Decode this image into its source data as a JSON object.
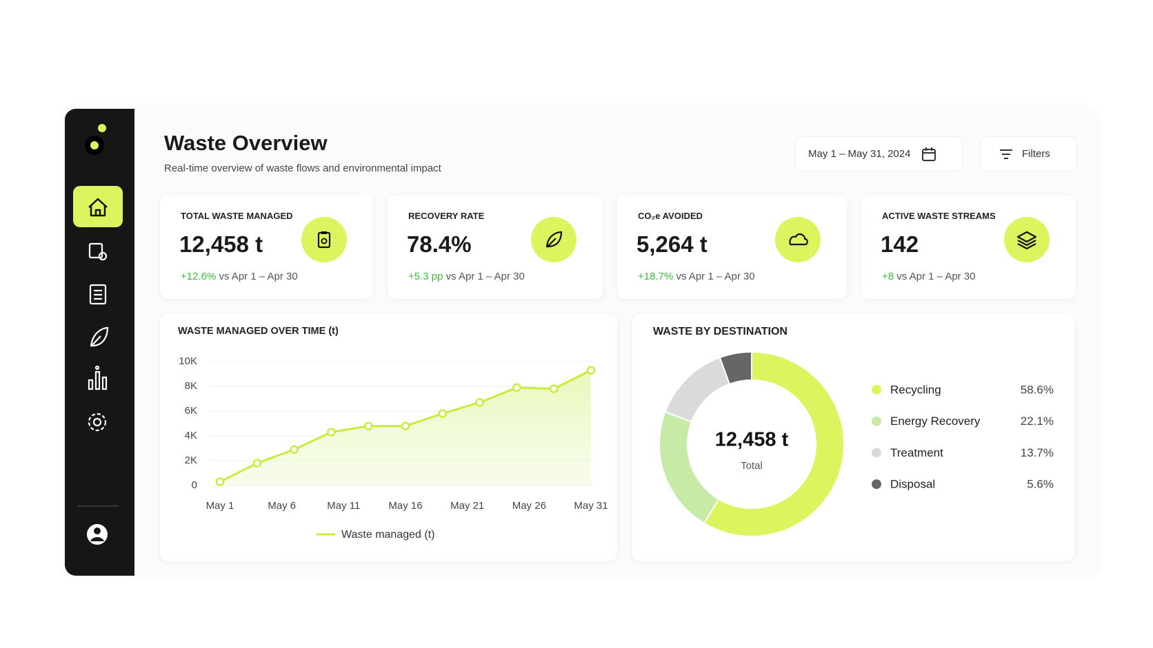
{
  "header": {
    "title": "Waste Overview",
    "subtitle": "Real-time overview of waste flows and environmental impact"
  },
  "date_range": "May 1 – May 31, 2024",
  "filters": "Filters",
  "kpis": [
    {
      "label": "TOTAL WASTE MANAGED",
      "value": "12,458 t",
      "change": "+12.6%",
      "comparison": "vs Apr 1 – Apr 30"
    },
    {
      "label": "RECOVERY RATE",
      "value": "78.4%",
      "change": "+5.3 pp",
      "comparison": "vs Apr 1 – Apr 30"
    },
    {
      "label": "CO₂e AVOIDED",
      "value": "5,264 t",
      "change": "+18.7%",
      "comparison": "vs Apr 1 – Apr 30"
    },
    {
      "label": "ACTIVE WASTE STREAMS",
      "value": "142",
      "change": "+8",
      "comparison": "vs Apr 1 – Apr 30"
    }
  ],
  "chart_data": [
    {
      "type": "line",
      "title": "WASTE MANAGED OVER TIME (t)",
      "x": [
        1,
        4,
        7,
        10,
        13,
        16,
        19,
        22,
        25,
        28,
        31
      ],
      "xlim": [
        1,
        31
      ],
      "xticks": [
        {
          "value": 1,
          "label": "May 1"
        },
        {
          "value": 6,
          "label": "May 6"
        },
        {
          "value": 11,
          "label": "May 11"
        },
        {
          "value": 16,
          "label": "May 16"
        },
        {
          "value": 21,
          "label": "May 21"
        },
        {
          "value": 26,
          "label": "May 26"
        },
        {
          "value": 31,
          "label": "May 31"
        }
      ],
      "ylim": [
        0,
        10000
      ],
      "yticks": [
        0,
        {
          "value": 2000,
          "label": "2K"
        },
        {
          "value": 4000,
          "label": "4K"
        },
        {
          "value": 6000,
          "label": "6K"
        },
        {
          "value": 8000,
          "label": "8K"
        },
        {
          "value": 10000,
          "label": "10K"
        }
      ],
      "grid": true,
      "legend": "bottom",
      "series": [
        {
          "name": "Waste managed (t)",
          "color": "#c8ec3c",
          "values": [
            300,
            1800,
            2900,
            4300,
            4800,
            4800,
            5800,
            6700,
            7900,
            7800,
            9300
          ]
        }
      ]
    },
    {
      "type": "donut",
      "title": "WASTE BY DESTINATION",
      "categories": [
        "Recycling",
        "Energy Recovery",
        "Treatment",
        "Disposal"
      ],
      "values": [
        58.6,
        22.1,
        13.7,
        5.6
      ],
      "value_labels": [
        "58.6%",
        "22.1%",
        "13.7%",
        "5.6%"
      ],
      "colors": [
        "#dcf55e",
        "#c7eaa6",
        "#dadada",
        "#666666"
      ],
      "center_value": "12,458 t",
      "center_label": "Total",
      "legend": "right"
    }
  ]
}
